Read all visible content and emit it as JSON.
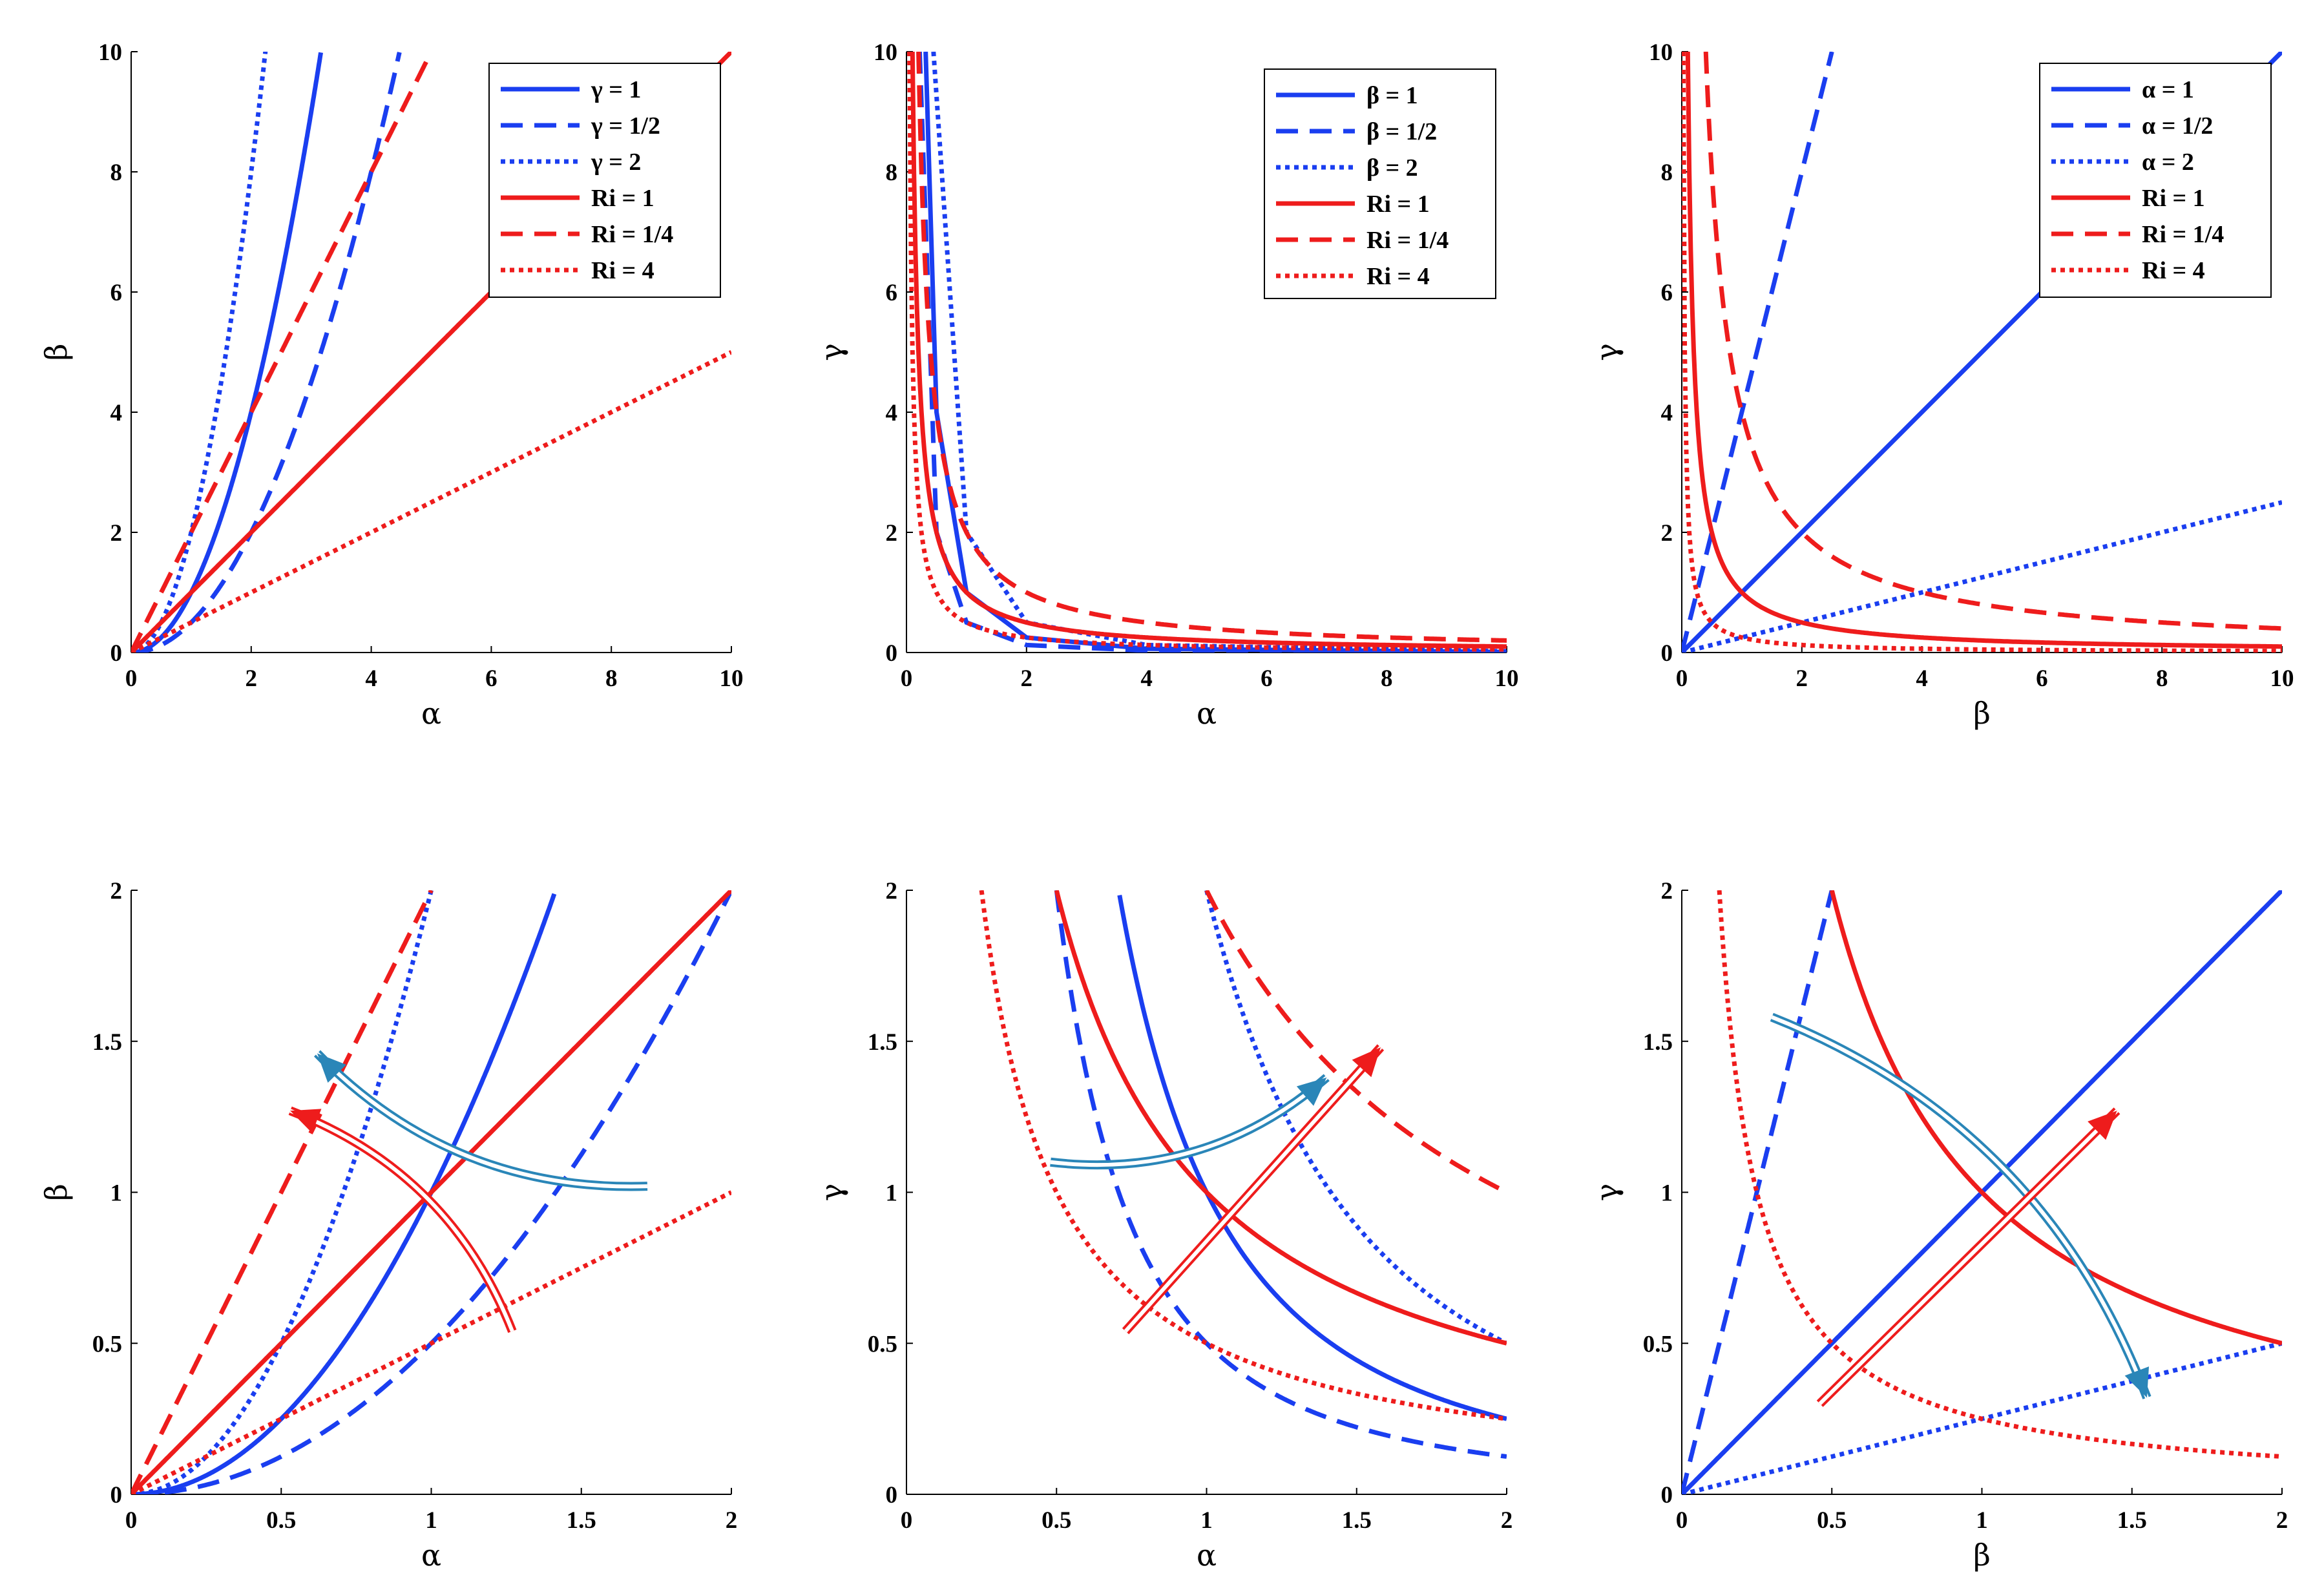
{
  "colors": {
    "blue": "#1a3ef0",
    "red": "#ee1c1c",
    "arrow_blue": "#2a86b8",
    "arrow_red": "#ee1c1c"
  },
  "chart_data": [
    {
      "type": "line",
      "xlabel": "α",
      "ylabel": "β",
      "xlim": [
        0,
        10
      ],
      "ylim": [
        0,
        10
      ],
      "xticks": [
        "0",
        "2",
        "4",
        "6",
        "8",
        "10"
      ],
      "yticks": [
        "0",
        "2",
        "4",
        "6",
        "8",
        "10"
      ],
      "legend": "top-right",
      "series": [
        {
          "name": "γ = 1",
          "color": "blue",
          "dash": "solid",
          "relation": "beta = alpha^2",
          "x": [
            0,
            0.5,
            1,
            1.5,
            2,
            2.5,
            3,
            3.16
          ],
          "y": [
            0,
            0.25,
            1,
            2.25,
            4,
            6.25,
            9,
            10
          ]
        },
        {
          "name": "γ = 1/2",
          "color": "blue",
          "dash": "dashed",
          "relation": "beta = alpha^2 / 2",
          "x": [
            0,
            1,
            2,
            3,
            4,
            4.47
          ],
          "y": [
            0,
            0.5,
            2,
            4.5,
            8,
            10
          ]
        },
        {
          "name": "γ = 2",
          "color": "blue",
          "dash": "dotted",
          "relation": "beta = 2 alpha^2",
          "x": [
            0,
            0.5,
            1,
            1.5,
            2,
            2.24
          ],
          "y": [
            0,
            0.5,
            2,
            4.5,
            8,
            10
          ]
        },
        {
          "name": "Ri = 1",
          "color": "red",
          "dash": "solid",
          "relation": "beta = alpha",
          "x": [
            0,
            10
          ],
          "y": [
            0,
            10
          ]
        },
        {
          "name": "Ri = 1/4",
          "color": "red",
          "dash": "dashed",
          "relation": "beta = 2 alpha",
          "x": [
            0,
            5
          ],
          "y": [
            0,
            10
          ]
        },
        {
          "name": "Ri = 4",
          "color": "red",
          "dash": "dotted",
          "relation": "beta = alpha / 2",
          "x": [
            0,
            10
          ],
          "y": [
            0,
            5
          ]
        }
      ]
    },
    {
      "type": "line",
      "xlabel": "α",
      "ylabel": "γ",
      "xlim": [
        0,
        10
      ],
      "ylim": [
        0,
        10
      ],
      "xticks": [
        "0",
        "2",
        "4",
        "6",
        "8",
        "10"
      ],
      "yticks": [
        "0",
        "2",
        "4",
        "6",
        "8",
        "10"
      ],
      "legend": "top-right",
      "series": [
        {
          "name": "β = 1",
          "color": "blue",
          "dash": "solid",
          "relation": "gamma = beta / alpha^2",
          "x": [
            0.32,
            0.5,
            1,
            2,
            4,
            10
          ],
          "y": [
            10,
            4,
            1,
            0.25,
            0.0625,
            0.01
          ]
        },
        {
          "name": "β = 1/2",
          "color": "blue",
          "dash": "dashed",
          "relation": "gamma = beta / alpha^2",
          "x": [
            0.22,
            0.5,
            1,
            2,
            4,
            10
          ],
          "y": [
            10,
            2,
            0.5,
            0.125,
            0.03,
            0.005
          ]
        },
        {
          "name": "β = 2",
          "color": "blue",
          "dash": "dotted",
          "relation": "gamma = beta / alpha^2",
          "x": [
            0.45,
            1,
            2,
            4,
            10
          ],
          "y": [
            10,
            2,
            0.5,
            0.125,
            0.02
          ]
        },
        {
          "name": "Ri = 1",
          "color": "red",
          "dash": "solid",
          "relation": "gamma = 1 / alpha",
          "x": [
            0.1,
            0.5,
            1,
            2,
            4,
            10
          ],
          "y": [
            10,
            2,
            1,
            0.5,
            0.25,
            0.1
          ]
        },
        {
          "name": "Ri = 1/4",
          "color": "red",
          "dash": "dashed",
          "relation": "gamma = 2 / alpha",
          "x": [
            0.2,
            0.5,
            1,
            2,
            4,
            10
          ],
          "y": [
            10,
            4,
            2,
            1,
            0.5,
            0.2
          ]
        },
        {
          "name": "Ri = 4",
          "color": "red",
          "dash": "dotted",
          "relation": "gamma = 1 / (2 alpha)",
          "x": [
            0.05,
            0.5,
            1,
            2,
            4,
            10
          ],
          "y": [
            10,
            1,
            0.5,
            0.25,
            0.125,
            0.05
          ]
        }
      ]
    },
    {
      "type": "line",
      "xlabel": "β",
      "ylabel": "γ",
      "xlim": [
        0,
        10
      ],
      "ylim": [
        0,
        10
      ],
      "xticks": [
        "0",
        "2",
        "4",
        "6",
        "8",
        "10"
      ],
      "yticks": [
        "0",
        "2",
        "4",
        "6",
        "8",
        "10"
      ],
      "legend": "top-right",
      "series": [
        {
          "name": "α = 1",
          "color": "blue",
          "dash": "solid",
          "relation": "gamma = beta / alpha^2",
          "x": [
            0,
            10
          ],
          "y": [
            0,
            10
          ]
        },
        {
          "name": "α = 1/2",
          "color": "blue",
          "dash": "dashed",
          "relation": "gamma = beta / alpha^2",
          "x": [
            0,
            2.5
          ],
          "y": [
            0,
            10
          ]
        },
        {
          "name": "α = 2",
          "color": "blue",
          "dash": "dotted",
          "relation": "gamma = beta / alpha^2",
          "x": [
            0,
            10
          ],
          "y": [
            0,
            2.5
          ]
        },
        {
          "name": "Ri = 1",
          "color": "red",
          "dash": "solid",
          "relation": "gamma = 1 / beta",
          "x": [
            0.1,
            0.5,
            1,
            2,
            4,
            10
          ],
          "y": [
            10,
            2,
            1,
            0.5,
            0.25,
            0.1
          ]
        },
        {
          "name": "Ri = 1/4",
          "color": "red",
          "dash": "dashed",
          "relation": "gamma = 4 / beta",
          "x": [
            0.4,
            1,
            2,
            4,
            10
          ],
          "y": [
            10,
            4,
            2,
            1,
            0.4
          ]
        },
        {
          "name": "Ri = 4",
          "color": "red",
          "dash": "dotted",
          "relation": "gamma = 1 / (4 beta)",
          "x": [
            0.025,
            0.25,
            1,
            2,
            10
          ],
          "y": [
            10,
            1,
            0.25,
            0.125,
            0.025
          ]
        }
      ]
    },
    {
      "type": "line",
      "xlabel": "α",
      "ylabel": "β",
      "xlim": [
        0,
        2
      ],
      "ylim": [
        0,
        2
      ],
      "xticks": [
        "0",
        "0.5",
        "1",
        "1.5",
        "2"
      ],
      "yticks": [
        "0",
        "0.5",
        "1",
        "1.5",
        "2"
      ],
      "series": [
        {
          "color": "blue",
          "dash": "solid",
          "relation": "beta = alpha^2",
          "x": [
            0,
            0.5,
            1,
            1.41
          ],
          "y": [
            0,
            0.25,
            1,
            2
          ]
        },
        {
          "color": "blue",
          "dash": "dashed",
          "relation": "beta = alpha^2 / 2",
          "x": [
            0,
            0.5,
            1,
            1.5,
            2
          ],
          "y": [
            0,
            0.125,
            0.5,
            1.125,
            2
          ]
        },
        {
          "color": "blue",
          "dash": "dotted",
          "relation": "beta = 2 alpha^2",
          "x": [
            0,
            0.5,
            1
          ],
          "y": [
            0,
            0.5,
            2
          ]
        },
        {
          "color": "red",
          "dash": "solid",
          "relation": "beta = alpha",
          "x": [
            0,
            2
          ],
          "y": [
            0,
            2
          ]
        },
        {
          "color": "red",
          "dash": "dashed",
          "relation": "beta = 2 alpha",
          "x": [
            0,
            1
          ],
          "y": [
            0,
            2
          ]
        },
        {
          "color": "red",
          "dash": "dotted",
          "relation": "beta = alpha / 2",
          "x": [
            0,
            2
          ],
          "y": [
            0,
            1
          ]
        }
      ],
      "annotations": [
        {
          "kind": "curved-arrow",
          "color": "arrow_blue",
          "from": [
            1.72,
            1.02
          ],
          "to": [
            0.62,
            1.46
          ]
        },
        {
          "kind": "curved-arrow",
          "color": "arrow_red",
          "from": [
            1.27,
            0.54
          ],
          "to": [
            0.53,
            1.27
          ]
        }
      ]
    },
    {
      "type": "line",
      "xlabel": "α",
      "ylabel": "γ",
      "xlim": [
        0,
        2
      ],
      "ylim": [
        0,
        2
      ],
      "xticks": [
        "0",
        "0.5",
        "1",
        "1.5",
        "2"
      ],
      "yticks": [
        "0",
        "0.5",
        "1",
        "1.5",
        "2"
      ],
      "series": [
        {
          "color": "blue",
          "dash": "solid",
          "relation": "gamma = 1 / alpha^2",
          "x": [
            0.71,
            1,
            1.5,
            2
          ],
          "y": [
            2,
            1,
            0.444,
            0.25
          ]
        },
        {
          "color": "blue",
          "dash": "dashed",
          "relation": "gamma = 1 / (2 alpha^2)",
          "x": [
            0.5,
            1,
            1.5,
            2
          ],
          "y": [
            2,
            0.5,
            0.222,
            0.125
          ]
        },
        {
          "color": "blue",
          "dash": "dotted",
          "relation": "gamma = 2 / alpha^2",
          "x": [
            1,
            1.5,
            2
          ],
          "y": [
            2,
            0.889,
            0.5
          ]
        },
        {
          "color": "red",
          "dash": "solid",
          "relation": "gamma = 1 / alpha",
          "x": [
            0.5,
            1,
            1.5,
            2
          ],
          "y": [
            2,
            1,
            0.667,
            0.5
          ]
        },
        {
          "color": "red",
          "dash": "dashed",
          "relation": "gamma = 2 / alpha",
          "x": [
            1,
            1.5,
            2
          ],
          "y": [
            2,
            1.333,
            1
          ]
        },
        {
          "color": "red",
          "dash": "dotted",
          "relation": "gamma = 1 / (2 alpha)",
          "x": [
            0.25,
            0.5,
            1,
            2
          ],
          "y": [
            2,
            1,
            0.5,
            0.25
          ]
        }
      ],
      "annotations": [
        {
          "kind": "curved-arrow",
          "color": "arrow_blue",
          "from": [
            0.48,
            1.1
          ],
          "to": [
            1.4,
            1.38
          ]
        },
        {
          "kind": "straight-arrow",
          "color": "arrow_red",
          "from": [
            0.73,
            0.54
          ],
          "to": [
            1.58,
            1.48
          ]
        }
      ]
    },
    {
      "type": "line",
      "xlabel": "β",
      "ylabel": "γ",
      "xlim": [
        0,
        2
      ],
      "ylim": [
        0,
        2
      ],
      "xticks": [
        "0",
        "0.5",
        "1",
        "1.5",
        "2"
      ],
      "yticks": [
        "0",
        "0.5",
        "1",
        "1.5",
        "2"
      ],
      "series": [
        {
          "color": "blue",
          "dash": "solid",
          "relation": "gamma = beta",
          "x": [
            0,
            2
          ],
          "y": [
            0,
            2
          ]
        },
        {
          "color": "blue",
          "dash": "dashed",
          "relation": "gamma = 4 beta",
          "x": [
            0,
            0.5
          ],
          "y": [
            0,
            2
          ]
        },
        {
          "color": "blue",
          "dash": "dotted",
          "relation": "gamma = beta / 4",
          "x": [
            0,
            2
          ],
          "y": [
            0,
            0.5
          ]
        },
        {
          "color": "red",
          "dash": "solid",
          "relation": "gamma = 1 / beta",
          "x": [
            0.5,
            1,
            1.5,
            2
          ],
          "y": [
            2,
            1,
            0.667,
            0.5
          ]
        },
        {
          "color": "red",
          "dash": "dotted",
          "relation": "gamma = 1 / (4 beta)",
          "x": [
            0.125,
            0.25,
            0.5,
            1,
            2
          ],
          "y": [
            2,
            1,
            0.5,
            0.25,
            0.125
          ]
        }
      ],
      "annotations": [
        {
          "kind": "curved-arrow",
          "color": "arrow_blue",
          "from": [
            0.3,
            1.58
          ],
          "to": [
            1.55,
            0.32
          ]
        },
        {
          "kind": "straight-arrow",
          "color": "arrow_red",
          "from": [
            0.46,
            0.3
          ],
          "to": [
            1.45,
            1.27
          ]
        }
      ]
    }
  ]
}
